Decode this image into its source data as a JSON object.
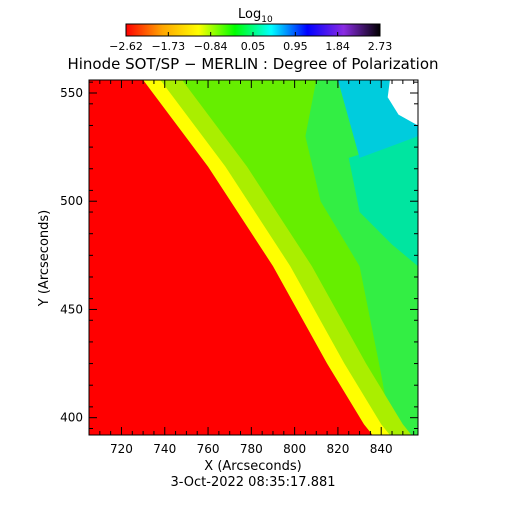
{
  "chart_data": {
    "type": "heatmap",
    "title": "Hinode SOT/SP − MERLIN : Degree of Polarization",
    "xlabel": "X (Arcseconds)",
    "ylabel": "Y (Arcseconds)",
    "timestamp": "3-Oct-2022 08:35:17.881",
    "xlim": [
      705,
      857
    ],
    "ylim": [
      392,
      556
    ],
    "x_ticks": [
      "720",
      "740",
      "760",
      "780",
      "800",
      "820",
      "840"
    ],
    "y_ticks": [
      "400",
      "450",
      "500",
      "550"
    ],
    "colorbar": {
      "label": "Log",
      "label_subscript": "10",
      "range": [
        -2.62,
        2.73
      ],
      "ticks": [
        "−2.62",
        "−1.73",
        "−0.84",
        "0.05",
        "0.95",
        "1.84",
        "2.73"
      ],
      "colors": [
        "#ff0000",
        "#ffa500",
        "#ffff00",
        "#00ff00",
        "#00ffff",
        "#0000ff",
        "#8a2be2",
        "#000000"
      ]
    },
    "limb_curve": [
      [
        730,
        556
      ],
      [
        760,
        516
      ],
      [
        790,
        470
      ],
      [
        815,
        425
      ],
      [
        832,
        397
      ],
      [
        836,
        392
      ]
    ],
    "region_colors": {
      "off_limb": "#ff0000",
      "limb_band": "#ffff00",
      "disk_near": "#aaee00",
      "disk": "#66ee00",
      "disk_far": "#33ee44",
      "high": "#00e5a0",
      "top_right": "#00ccdd",
      "no_data": "#ffffff"
    }
  }
}
